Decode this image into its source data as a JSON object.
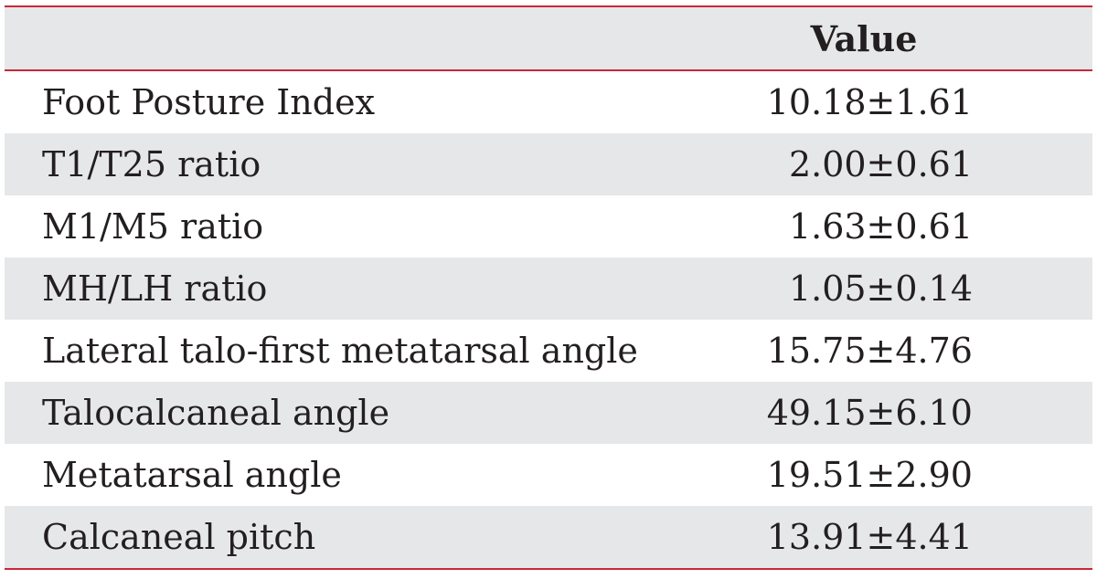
{
  "table": {
    "header": [
      "",
      "Value"
    ],
    "rows": [
      [
        "Foot Posture Index",
        "10.18±1.61"
      ],
      [
        "T1/T25 ratio",
        "2.00±0.61"
      ],
      [
        "M1/M5 ratio",
        "1.63±0.61"
      ],
      [
        "MH/LH ratio",
        "1.05±0.14"
      ],
      [
        "Lateral talo-first metatarsal angle",
        "15.75±4.76"
      ],
      [
        "Talocalcaneal angle",
        "49.15±6.10"
      ],
      [
        "Metatarsal angle",
        "19.51±2.90"
      ],
      [
        "Calcaneal pitch",
        "13.91±4.41"
      ]
    ]
  }
}
